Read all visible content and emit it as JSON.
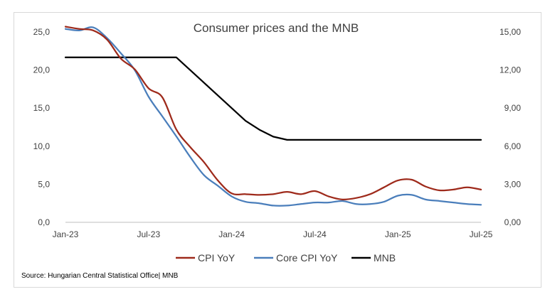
{
  "chart_data": {
    "type": "line",
    "title": "Consumer prices and the MNB",
    "source": "Source: Hungarian Central Statistical Office| MNB",
    "x_tick_labels": [
      "Jan-23",
      "Jul-23",
      "Jan-24",
      "Jul-24",
      "Jan-25",
      "Jul-25"
    ],
    "x_tick_months": [
      0,
      6,
      12,
      18,
      24,
      30
    ],
    "x_range_months": [
      0,
      30
    ],
    "y_left": {
      "range": [
        0,
        25
      ],
      "ticks": [
        "0,0",
        "5,0",
        "10,0",
        "15,0",
        "20,0",
        "25,0"
      ],
      "tick_values": [
        0,
        5,
        10,
        15,
        20,
        25
      ]
    },
    "y_right": {
      "range": [
        0,
        15
      ],
      "ticks": [
        "0,00",
        "3,00",
        "6,00",
        "9,00",
        "12,00",
        "15,00"
      ],
      "tick_values": [
        0,
        3,
        6,
        9,
        12,
        15
      ]
    },
    "legend_position": "bottom",
    "series": [
      {
        "name": "CPI YoY",
        "axis": "left",
        "color": "#9e2a1b",
        "x": [
          0,
          1,
          2,
          3,
          4,
          5,
          6,
          7,
          8,
          9,
          10,
          11,
          12,
          13,
          14,
          15,
          16,
          17,
          18,
          19,
          20,
          21,
          22,
          23,
          24,
          25,
          26,
          27,
          28,
          29,
          30
        ],
        "values": [
          25.7,
          25.4,
          25.2,
          24.0,
          21.5,
          20.1,
          17.6,
          16.4,
          12.2,
          9.9,
          7.9,
          5.5,
          3.8,
          3.7,
          3.6,
          3.7,
          4.0,
          3.7,
          4.1,
          3.4,
          3.0,
          3.2,
          3.7,
          4.6,
          5.5,
          5.6,
          4.7,
          4.2,
          4.3,
          4.6,
          4.3
        ]
      },
      {
        "name": "Core CPI YoY",
        "axis": "left",
        "color": "#4a7ebb",
        "x": [
          0,
          1,
          2,
          3,
          4,
          5,
          6,
          7,
          8,
          9,
          10,
          11,
          12,
          13,
          14,
          15,
          16,
          17,
          18,
          19,
          20,
          21,
          22,
          23,
          24,
          25,
          26,
          27,
          28,
          29,
          30
        ],
        "values": [
          25.4,
          25.2,
          25.6,
          24.2,
          22.2,
          20.0,
          16.5,
          13.9,
          11.3,
          8.6,
          6.2,
          4.8,
          3.4,
          2.7,
          2.5,
          2.2,
          2.2,
          2.4,
          2.6,
          2.6,
          2.8,
          2.4,
          2.4,
          2.7,
          3.5,
          3.6,
          3.0,
          2.8,
          2.6,
          2.4,
          2.3
        ]
      },
      {
        "name": "MNB",
        "axis": "right",
        "color": "#000000",
        "x": [
          0,
          1,
          2,
          3,
          4,
          5,
          6,
          7,
          8,
          9,
          10,
          11,
          12,
          13,
          14,
          15,
          16,
          17,
          18,
          19,
          20,
          21,
          22,
          23,
          24,
          25,
          26,
          27,
          28,
          29,
          30
        ],
        "values": [
          13.0,
          13.0,
          13.0,
          13.0,
          13.0,
          13.0,
          13.0,
          13.0,
          13.0,
          12.0,
          11.0,
          10.0,
          9.0,
          8.0,
          7.3,
          6.75,
          6.5,
          6.5,
          6.5,
          6.5,
          6.5,
          6.5,
          6.5,
          6.5,
          6.5,
          6.5,
          6.5,
          6.5,
          6.5,
          6.5,
          6.5
        ]
      }
    ]
  }
}
